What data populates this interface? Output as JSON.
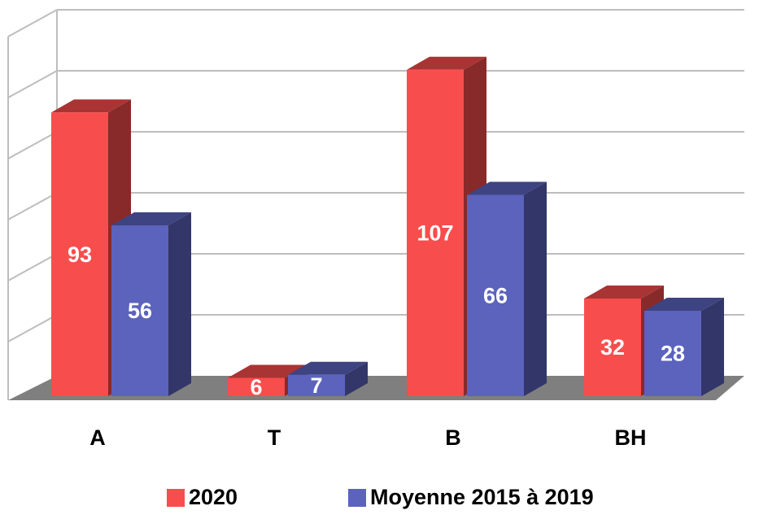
{
  "chart_data": {
    "type": "bar3d",
    "categories": [
      "A",
      "T",
      "B",
      "BH"
    ],
    "series": [
      {
        "name": "2020",
        "color": "#f84d4d",
        "values": [
          93,
          6,
          107,
          32
        ]
      },
      {
        "name": "Moyenne 2015 à 2019",
        "color": "#5b63bd",
        "values": [
          56,
          7,
          66,
          28
        ]
      }
    ],
    "ylim": [
      0,
      120
    ],
    "yticks": [
      0,
      20,
      40,
      60,
      80,
      100,
      120
    ],
    "grid": true,
    "legend": "bottom"
  }
}
